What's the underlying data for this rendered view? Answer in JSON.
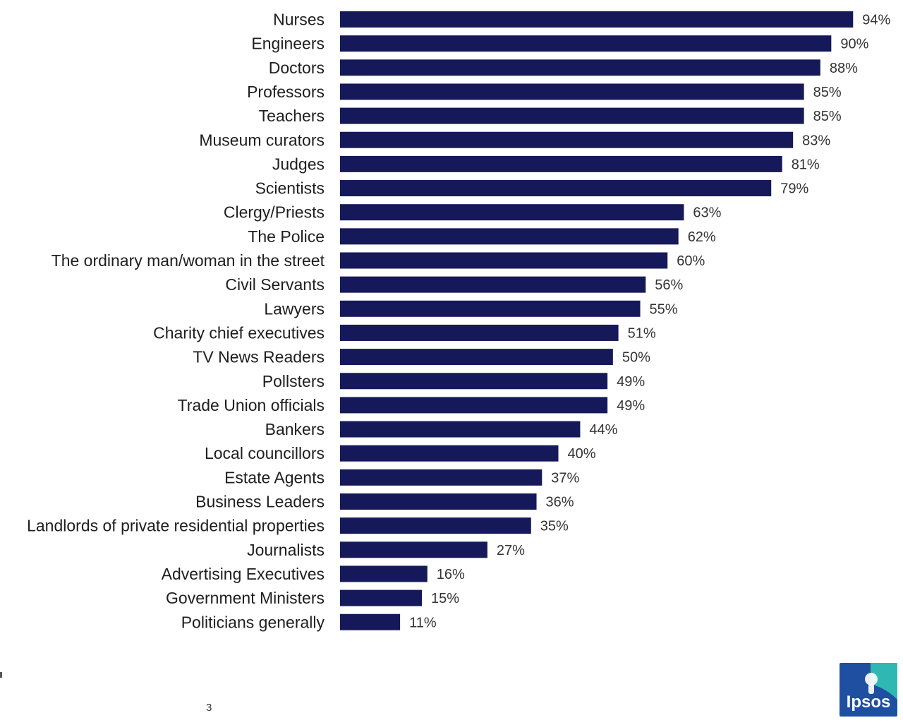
{
  "chart_data": {
    "type": "bar",
    "orientation": "horizontal",
    "categories": [
      "Nurses",
      "Engineers",
      "Doctors",
      "Professors",
      "Teachers",
      "Museum curators",
      "Judges",
      "Scientists",
      "Clergy/Priests",
      "The Police",
      "The ordinary man/woman in the street",
      "Civil Servants",
      "Lawyers",
      "Charity chief executives",
      "TV News Readers",
      "Pollsters",
      "Trade Union officials",
      "Bankers",
      "Local councillors",
      "Estate Agents",
      "Business Leaders",
      "Landlords of private residential properties",
      "Journalists",
      "Advertising Executives",
      "Government Ministers",
      "Politicians generally"
    ],
    "values": [
      94,
      90,
      88,
      85,
      85,
      83,
      81,
      79,
      63,
      62,
      60,
      56,
      55,
      51,
      50,
      49,
      49,
      44,
      40,
      37,
      36,
      35,
      27,
      16,
      15,
      11
    ],
    "value_labels": [
      "94%",
      "90%",
      "88%",
      "85%",
      "85%",
      "83%",
      "81%",
      "79%",
      "63%",
      "62%",
      "60%",
      "56%",
      "55%",
      "51%",
      "50%",
      "49%",
      "49%",
      "44%",
      "40%",
      "37%",
      "36%",
      "35%",
      "27%",
      "16%",
      "15%",
      "11%"
    ],
    "xlim": [
      0,
      100
    ],
    "bar_color": "#15195a",
    "grid": false,
    "legend": "none"
  },
  "footer": {
    "page_number": "3",
    "logo_text": "Ipsos",
    "logo_color": "#1f4fa0"
  }
}
